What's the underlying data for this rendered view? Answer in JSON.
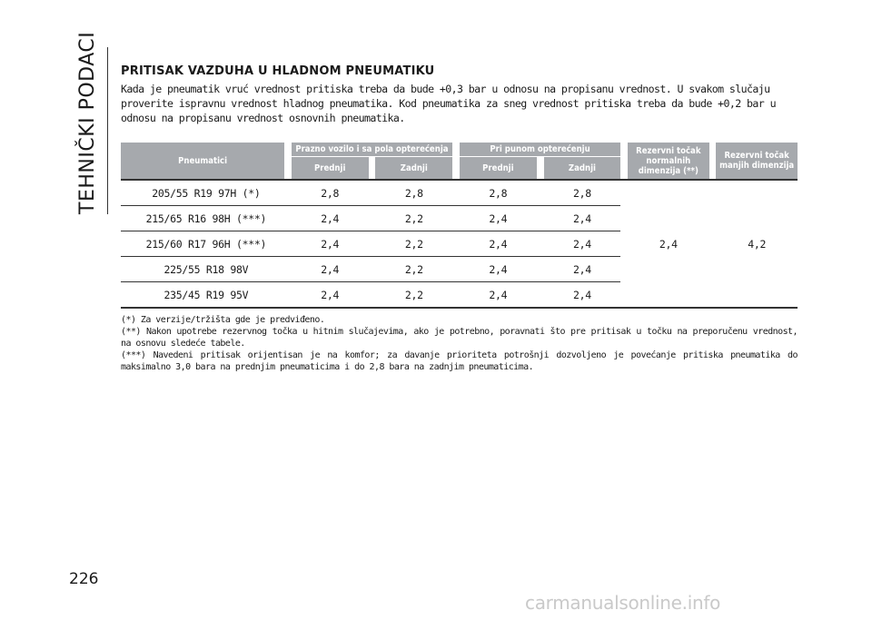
{
  "sidebar": {
    "chapter_title": "TEHNIČKI PODACI"
  },
  "page_number": "226",
  "section": {
    "title": "PRITISAK VAZDUHA U HLADNOM PNEUMATIKU",
    "intro": "Kada je pneumatik vruć vrednost pritiska treba da bude +0,3 bar u odnosu na propisanu vrednost. U svakom slučaju proverite ispravnu vrednost hladnog pneumatika. Kod pneumatika za sneg vrednost pritiska treba da bude +0,2 bar u odnosu na propisanu vrednost osnovnih pneumatika."
  },
  "table": {
    "headers": {
      "tyres": "Pneumatici",
      "empty_half": "Prazno vozilo i sa pola opterećenja",
      "full_load": "Pri punom opterećenju",
      "spare_normal": "Rezervni točak normalnih dimenzija (**)",
      "spare_small": "Rezervni točak manjih dimenzija",
      "front": "Prednji",
      "rear": "Zadnji"
    },
    "rows": [
      {
        "tyre": "205/55 R19 97H (*)",
        "empty_front": "2,8",
        "empty_rear": "2,8",
        "full_front": "2,8",
        "full_rear": "2,8"
      },
      {
        "tyre": "215/65 R16 98H (***)",
        "empty_front": "2,4",
        "empty_rear": "2,2",
        "full_front": "2,4",
        "full_rear": "2,4"
      },
      {
        "tyre": "215/60 R17 96H (***)",
        "empty_front": "2,4",
        "empty_rear": "2,2",
        "full_front": "2,4",
        "full_rear": "2,4"
      },
      {
        "tyre": "225/55 R18 98V",
        "empty_front": "2,4",
        "empty_rear": "2,2",
        "full_front": "2,4",
        "full_rear": "2,4"
      },
      {
        "tyre": "235/45 R19 95V",
        "empty_front": "2,4",
        "empty_rear": "2,2",
        "full_front": "2,4",
        "full_rear": "2,4"
      }
    ],
    "spare_normal_value": "2,4",
    "spare_small_value": "4,2"
  },
  "footnotes": [
    "(*) Za verzije/tržišta gde je predviđeno.",
    "(**) Nakon upotrebe rezervnog točka u hitnim slučajevima, ako je potrebno, poravnati što pre pritisak u točku na preporučenu vrednost, na osnovu sledeće tabele.",
    "(***) Navedeni pritisak orijentisan je na komfor; za davanje prioriteta potrošnji dozvoljeno je povećanje pritiska pneumatika do maksimalno 3,0 bara na prednjim pneumaticima i do 2,8 bara na zadnjim pneumaticima."
  ],
  "watermark": "carmanualsonline.info"
}
